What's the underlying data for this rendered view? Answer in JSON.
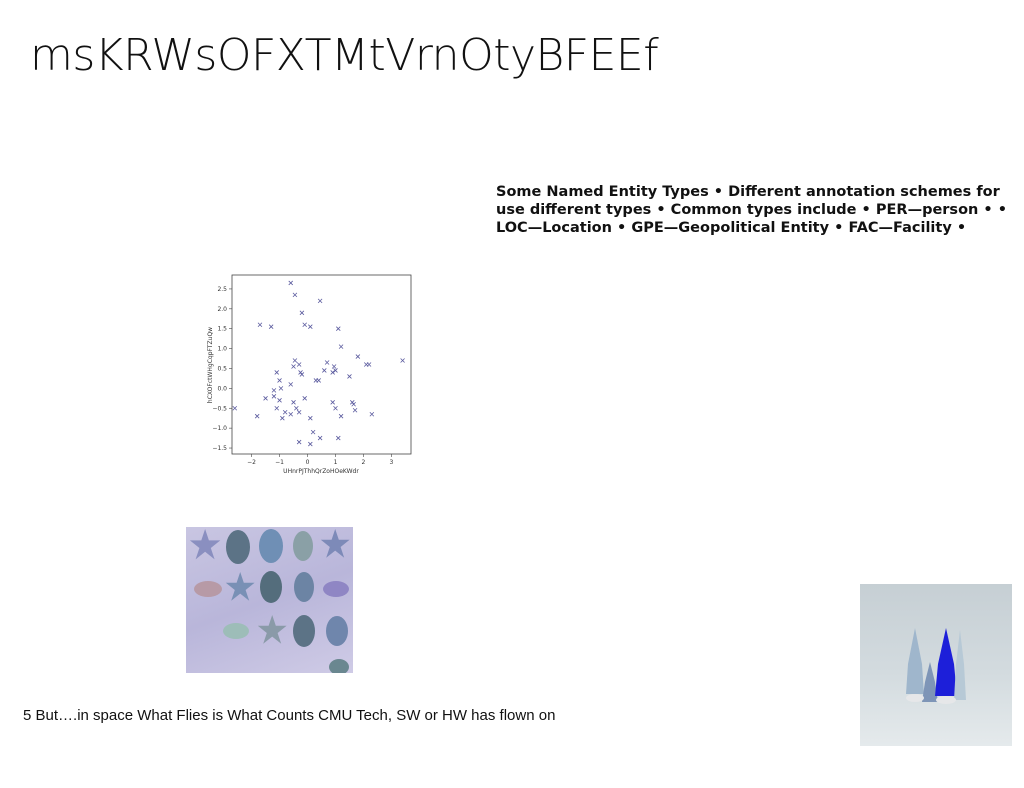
{
  "slide": {
    "title": "msKRWsOFXTMtVrnOtyBFEEf",
    "bullets": [
      "Some Named Entity Types •",
      "Different annotation schemes for use different types •",
      "Common types include •",
      "PER—person •",
      "• LOC—Location •",
      "GPE—Geopolitical Entity •",
      "FAC—Facility •"
    ],
    "footer": "5 But….in space What Flies is What Counts CMU Tech, SW or HW has flown on"
  },
  "chart_data": {
    "type": "scatter",
    "xlabel": "UHnrPJThhQrZoHOeKWdr",
    "ylabel": "hCXOFctWHgCqpFTZuQw",
    "xlim": [
      -2.7,
      3.7
    ],
    "ylim": [
      -1.65,
      2.85
    ],
    "xticks": [
      "−2",
      "−1",
      "0",
      "1",
      "2",
      "3"
    ],
    "yticks": [
      "2.5",
      "2.0",
      "1.5",
      "1.0",
      "0.5",
      "0.0",
      "−0.5",
      "−1.0",
      "−1.5"
    ],
    "marker": "x",
    "color": "#5a5a9e",
    "points": [
      [
        -2.6,
        -0.5
      ],
      [
        -1.8,
        -0.7
      ],
      [
        -1.7,
        1.6
      ],
      [
        -1.3,
        1.55
      ],
      [
        -1.5,
        -0.25
      ],
      [
        -1.2,
        -0.05
      ],
      [
        -1.1,
        0.4
      ],
      [
        -1.0,
        0.2
      ],
      [
        -1.1,
        -0.5
      ],
      [
        -1.0,
        -0.3
      ],
      [
        -0.9,
        -0.75
      ],
      [
        -0.95,
        0.0
      ],
      [
        -0.8,
        -0.6
      ],
      [
        -1.2,
        -0.2
      ],
      [
        -0.6,
        2.65
      ],
      [
        -0.45,
        2.35
      ],
      [
        -0.2,
        1.9
      ],
      [
        -0.1,
        1.6
      ],
      [
        0.1,
        1.55
      ],
      [
        0.45,
        2.2
      ],
      [
        -0.5,
        0.55
      ],
      [
        -0.45,
        0.7
      ],
      [
        -0.3,
        0.6
      ],
      [
        -0.2,
        0.35
      ],
      [
        -0.25,
        0.4
      ],
      [
        0.3,
        0.2
      ],
      [
        0.4,
        0.2
      ],
      [
        0.6,
        0.45
      ],
      [
        0.7,
        0.65
      ],
      [
        0.9,
        0.4
      ],
      [
        0.95,
        0.55
      ],
      [
        1.0,
        0.45
      ],
      [
        1.1,
        1.5
      ],
      [
        1.2,
        1.05
      ],
      [
        -0.5,
        -0.35
      ],
      [
        -0.4,
        -0.5
      ],
      [
        -0.6,
        -0.65
      ],
      [
        -0.3,
        -0.6
      ],
      [
        -0.1,
        -0.25
      ],
      [
        0.1,
        -0.75
      ],
      [
        0.2,
        -1.1
      ],
      [
        0.1,
        -1.4
      ],
      [
        0.45,
        -1.25
      ],
      [
        -0.3,
        -1.35
      ],
      [
        0.9,
        -0.35
      ],
      [
        1.0,
        -0.5
      ],
      [
        1.2,
        -0.7
      ],
      [
        1.1,
        -1.25
      ],
      [
        1.5,
        0.3
      ],
      [
        1.6,
        -0.35
      ],
      [
        1.65,
        -0.4
      ],
      [
        1.7,
        -0.55
      ],
      [
        1.8,
        0.8
      ],
      [
        2.1,
        0.6
      ],
      [
        2.2,
        0.6
      ],
      [
        2.3,
        -0.65
      ],
      [
        3.4,
        0.7
      ],
      [
        -0.6,
        0.1
      ]
    ]
  },
  "images": [
    {
      "name": "ornaments-photo",
      "colors": [
        "#c9c6e2",
        "#8fa6b5",
        "#5d6f8c"
      ]
    },
    {
      "name": "blue-trees-photo",
      "colors": [
        "#c9d1d6",
        "#1d1fd9",
        "#7e95b7"
      ]
    }
  ]
}
